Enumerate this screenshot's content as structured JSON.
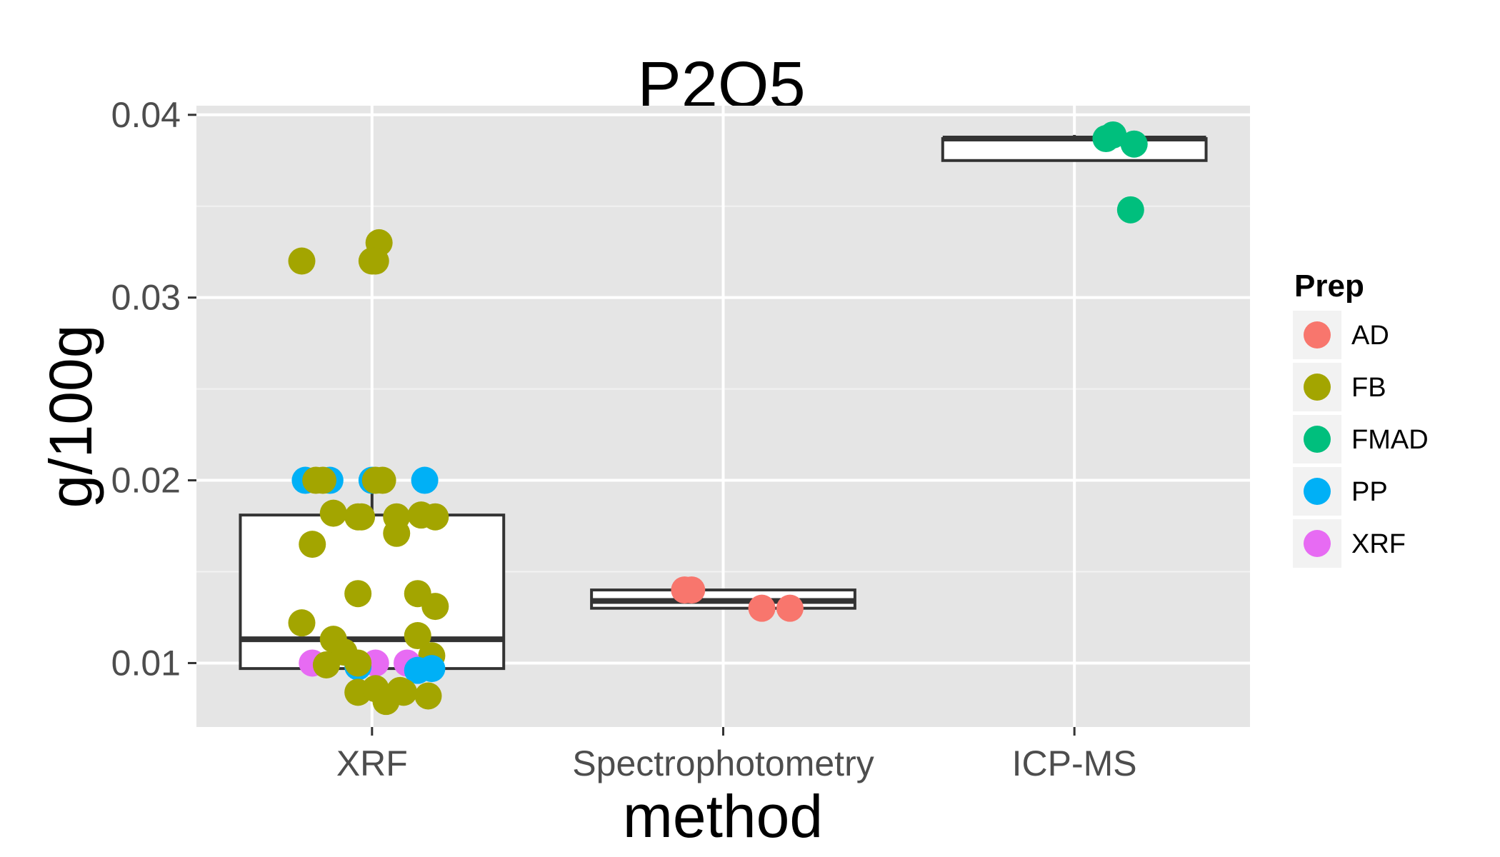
{
  "chart_data": {
    "type": "box",
    "title": "P2O5",
    "xlabel": "method",
    "ylabel": "g/100g",
    "categories": [
      "XRF",
      "Spectrophotometry",
      "ICP-MS"
    ],
    "ylim": [
      0.0065,
      0.0405
    ],
    "yticks": [
      0.01,
      0.02,
      0.03,
      0.04
    ],
    "ytick_labels": [
      "0.01",
      "0.02",
      "0.03",
      "0.04"
    ],
    "grid": true,
    "legend_position": "right",
    "legend": {
      "title": "Prep",
      "entries": [
        {
          "label": "AD",
          "color": "#F8766D"
        },
        {
          "label": "FB",
          "color": "#A3A500"
        },
        {
          "label": "FMAD",
          "color": "#00BF7D"
        },
        {
          "label": "PP",
          "color": "#00B0F6"
        },
        {
          "label": "XRF",
          "color": "#E76BF3"
        }
      ]
    },
    "boxes": [
      {
        "category": "XRF",
        "q1": 0.0097,
        "median": 0.0113,
        "q3": 0.0181,
        "whisker_low": 0.0097,
        "whisker_high": 0.02
      },
      {
        "category": "Spectrophotometry",
        "q1": 0.013,
        "median": 0.0134,
        "q3": 0.014,
        "whisker_low": 0.013,
        "whisker_high": 0.014
      },
      {
        "category": "ICP-MS",
        "q1": 0.0375,
        "median": 0.0387,
        "q3": 0.0387,
        "whisker_low": 0.0375,
        "whisker_high": 0.0389
      }
    ],
    "points": [
      {
        "category": "XRF",
        "jitter": -0.2,
        "y": 0.032,
        "prep": "FB"
      },
      {
        "category": "XRF",
        "jitter": 0.02,
        "y": 0.033,
        "prep": "FB"
      },
      {
        "category": "XRF",
        "jitter": 0.0,
        "y": 0.032,
        "prep": "FB"
      },
      {
        "category": "XRF",
        "jitter": 0.01,
        "y": 0.032,
        "prep": "FB"
      },
      {
        "category": "XRF",
        "jitter": -0.19,
        "y": 0.02,
        "prep": "PP"
      },
      {
        "category": "XRF",
        "jitter": -0.12,
        "y": 0.02,
        "prep": "PP"
      },
      {
        "category": "XRF",
        "jitter": 0.15,
        "y": 0.02,
        "prep": "PP"
      },
      {
        "category": "XRF",
        "jitter": 0.0,
        "y": 0.02,
        "prep": "PP"
      },
      {
        "category": "XRF",
        "jitter": -0.16,
        "y": 0.02,
        "prep": "FB"
      },
      {
        "category": "XRF",
        "jitter": -0.14,
        "y": 0.02,
        "prep": "FB"
      },
      {
        "category": "XRF",
        "jitter": 0.01,
        "y": 0.02,
        "prep": "FB"
      },
      {
        "category": "XRF",
        "jitter": 0.03,
        "y": 0.02,
        "prep": "FB"
      },
      {
        "category": "XRF",
        "jitter": -0.11,
        "y": 0.0182,
        "prep": "FB"
      },
      {
        "category": "XRF",
        "jitter": -0.04,
        "y": 0.018,
        "prep": "FB"
      },
      {
        "category": "XRF",
        "jitter": -0.03,
        "y": 0.018,
        "prep": "FB"
      },
      {
        "category": "XRF",
        "jitter": 0.07,
        "y": 0.018,
        "prep": "FB"
      },
      {
        "category": "XRF",
        "jitter": 0.14,
        "y": 0.0181,
        "prep": "FB"
      },
      {
        "category": "XRF",
        "jitter": 0.18,
        "y": 0.018,
        "prep": "FB"
      },
      {
        "category": "XRF",
        "jitter": 0.07,
        "y": 0.0171,
        "prep": "FB"
      },
      {
        "category": "XRF",
        "jitter": -0.17,
        "y": 0.0165,
        "prep": "FB"
      },
      {
        "category": "XRF",
        "jitter": -0.04,
        "y": 0.0138,
        "prep": "FB"
      },
      {
        "category": "XRF",
        "jitter": 0.13,
        "y": 0.0138,
        "prep": "FB"
      },
      {
        "category": "XRF",
        "jitter": 0.18,
        "y": 0.0131,
        "prep": "FB"
      },
      {
        "category": "XRF",
        "jitter": -0.2,
        "y": 0.0122,
        "prep": "FB"
      },
      {
        "category": "XRF",
        "jitter": -0.11,
        "y": 0.0113,
        "prep": "FB"
      },
      {
        "category": "XRF",
        "jitter": 0.13,
        "y": 0.0115,
        "prep": "FB"
      },
      {
        "category": "XRF",
        "jitter": -0.08,
        "y": 0.0106,
        "prep": "FB"
      },
      {
        "category": "XRF",
        "jitter": 0.17,
        "y": 0.0104,
        "prep": "FB"
      },
      {
        "category": "XRF",
        "jitter": -0.17,
        "y": 0.01,
        "prep": "XRF"
      },
      {
        "category": "XRF",
        "jitter": 0.01,
        "y": 0.01,
        "prep": "XRF"
      },
      {
        "category": "XRF",
        "jitter": 0.1,
        "y": 0.01,
        "prep": "XRF"
      },
      {
        "category": "XRF",
        "jitter": -0.04,
        "y": 0.0098,
        "prep": "PP"
      },
      {
        "category": "XRF",
        "jitter": 0.13,
        "y": 0.0096,
        "prep": "PP"
      },
      {
        "category": "XRF",
        "jitter": 0.17,
        "y": 0.0097,
        "prep": "PP"
      },
      {
        "category": "XRF",
        "jitter": -0.13,
        "y": 0.0099,
        "prep": "FB"
      },
      {
        "category": "XRF",
        "jitter": -0.04,
        "y": 0.01,
        "prep": "FB"
      },
      {
        "category": "XRF",
        "jitter": -0.04,
        "y": 0.0084,
        "prep": "FB"
      },
      {
        "category": "XRF",
        "jitter": 0.01,
        "y": 0.0086,
        "prep": "FB"
      },
      {
        "category": "XRF",
        "jitter": 0.04,
        "y": 0.0079,
        "prep": "FB"
      },
      {
        "category": "XRF",
        "jitter": 0.08,
        "y": 0.0085,
        "prep": "FB"
      },
      {
        "category": "XRF",
        "jitter": 0.09,
        "y": 0.0084,
        "prep": "FB"
      },
      {
        "category": "XRF",
        "jitter": 0.16,
        "y": 0.0082,
        "prep": "FB"
      },
      {
        "category": "Spectrophotometry",
        "jitter": -0.11,
        "y": 0.014,
        "prep": "AD"
      },
      {
        "category": "Spectrophotometry",
        "jitter": -0.09,
        "y": 0.014,
        "prep": "AD"
      },
      {
        "category": "Spectrophotometry",
        "jitter": 0.11,
        "y": 0.013,
        "prep": "AD"
      },
      {
        "category": "Spectrophotometry",
        "jitter": 0.19,
        "y": 0.013,
        "prep": "AD"
      },
      {
        "category": "ICP-MS",
        "jitter": 0.09,
        "y": 0.0387,
        "prep": "FMAD"
      },
      {
        "category": "ICP-MS",
        "jitter": 0.11,
        "y": 0.0389,
        "prep": "FMAD"
      },
      {
        "category": "ICP-MS",
        "jitter": 0.17,
        "y": 0.0384,
        "prep": "FMAD"
      },
      {
        "category": "ICP-MS",
        "jitter": 0.16,
        "y": 0.0348,
        "prep": "FMAD"
      }
    ]
  }
}
